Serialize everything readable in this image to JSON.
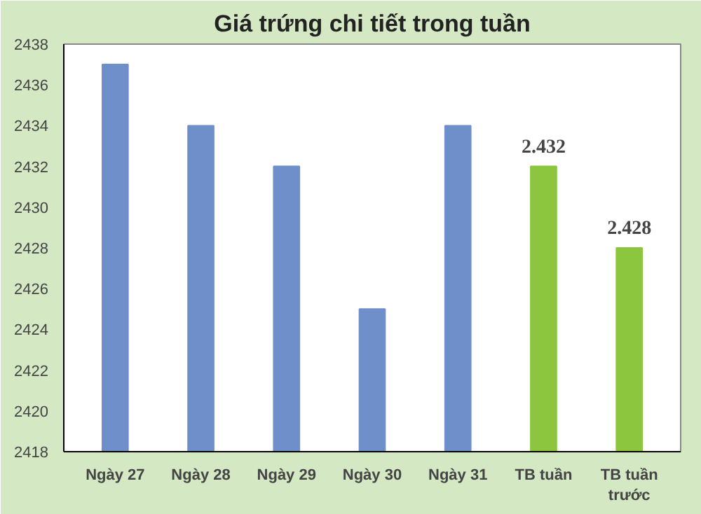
{
  "chart_data": {
    "type": "bar",
    "title": "Giá trứng chi tiết trong tuần",
    "categories": [
      "Ngày 27",
      "Ngày 28",
      "Ngày 29",
      "Ngày 30",
      "Ngày 31",
      "TB tuần",
      "TB tuần trước"
    ],
    "values": [
      2437,
      2434,
      2432,
      2425,
      2434,
      2432,
      2428
    ],
    "colors": [
      "#6f8fca",
      "#6f8fca",
      "#6f8fca",
      "#6f8fca",
      "#6f8fca",
      "#8cc63e",
      "#8cc63e"
    ],
    "value_labels": [
      null,
      null,
      null,
      null,
      null,
      "2.432",
      "2.428"
    ],
    "ylim": [
      2418,
      2438
    ],
    "yticks": [
      2418,
      2420,
      2422,
      2424,
      2426,
      2428,
      2430,
      2432,
      2434,
      2436,
      2438
    ],
    "grid": false
  }
}
